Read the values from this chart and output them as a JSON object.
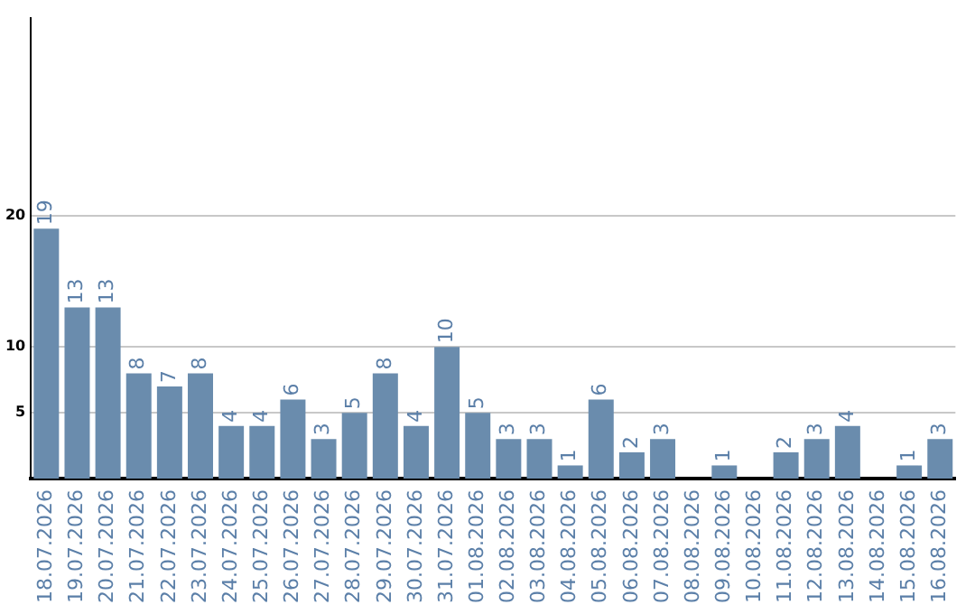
{
  "chart_data": {
    "type": "bar",
    "categories": [
      "18.07.2026",
      "19.07.2026",
      "20.07.2026",
      "21.07.2026",
      "22.07.2026",
      "23.07.2026",
      "24.07.2026",
      "25.07.2026",
      "26.07.2026",
      "27.07.2026",
      "28.07.2026",
      "29.07.2026",
      "30.07.2026",
      "31.07.2026",
      "01.08.2026",
      "02.08.2026",
      "03.08.2026",
      "04.08.2026",
      "05.08.2026",
      "06.08.2026",
      "07.08.2026",
      "08.08.2026",
      "09.08.2026",
      "10.08.2026",
      "11.08.2026",
      "12.08.2026",
      "13.08.2026",
      "14.08.2026",
      "15.08.2026",
      "16.08.2026"
    ],
    "values": [
      19,
      13,
      13,
      8,
      7,
      8,
      4,
      4,
      6,
      3,
      5,
      8,
      4,
      10,
      5,
      3,
      3,
      1,
      6,
      2,
      3,
      null,
      1,
      null,
      2,
      3,
      4,
      null,
      1,
      3
    ],
    "color": "#6a8cad",
    "ylim": [
      0,
      35
    ],
    "yticks": [
      5,
      10,
      20
    ],
    "grid": "y",
    "legend": false,
    "data_labels": true
  }
}
